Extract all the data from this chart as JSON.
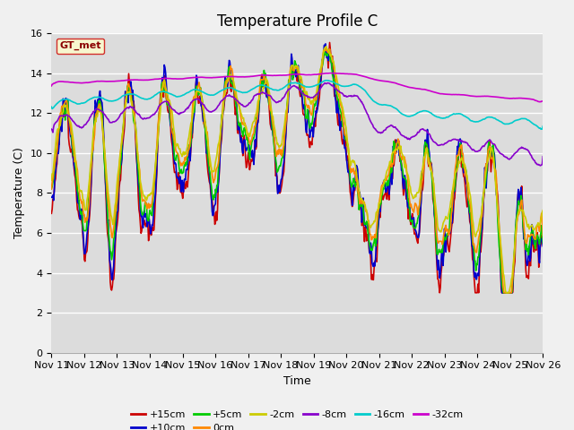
{
  "title": "Temperature Profile C",
  "xlabel": "Time",
  "ylabel": "Temperature (C)",
  "ylim": [
    0,
    16
  ],
  "yticks": [
    0,
    2,
    4,
    6,
    8,
    10,
    12,
    14,
    16
  ],
  "xtick_labels": [
    "Nov 11",
    "Nov 12",
    "Nov 13",
    "Nov 14",
    "Nov 15",
    "Nov 16",
    "Nov 17",
    "Nov 18",
    "Nov 19",
    "Nov 20",
    "Nov 21",
    "Nov 22",
    "Nov 23",
    "Nov 24",
    "Nov 25",
    "Nov 26"
  ],
  "legend_label": "GT_met",
  "legend_bg": "#ffffcc",
  "legend_edge": "#cc0000",
  "fig_bg": "#f0f0f0",
  "plot_bg": "#dcdcdc",
  "series_colors": [
    "#cc0000",
    "#0000cc",
    "#00cc00",
    "#ff8800",
    "#cccc00",
    "#8800cc",
    "#00cccc",
    "#cc00cc"
  ],
  "series_labels": [
    "+15cm",
    "+10cm",
    "+5cm",
    "0cm",
    "-2cm",
    "-8cm",
    "-16cm",
    "-32cm"
  ],
  "title_fontsize": 12,
  "tick_fontsize": 8
}
